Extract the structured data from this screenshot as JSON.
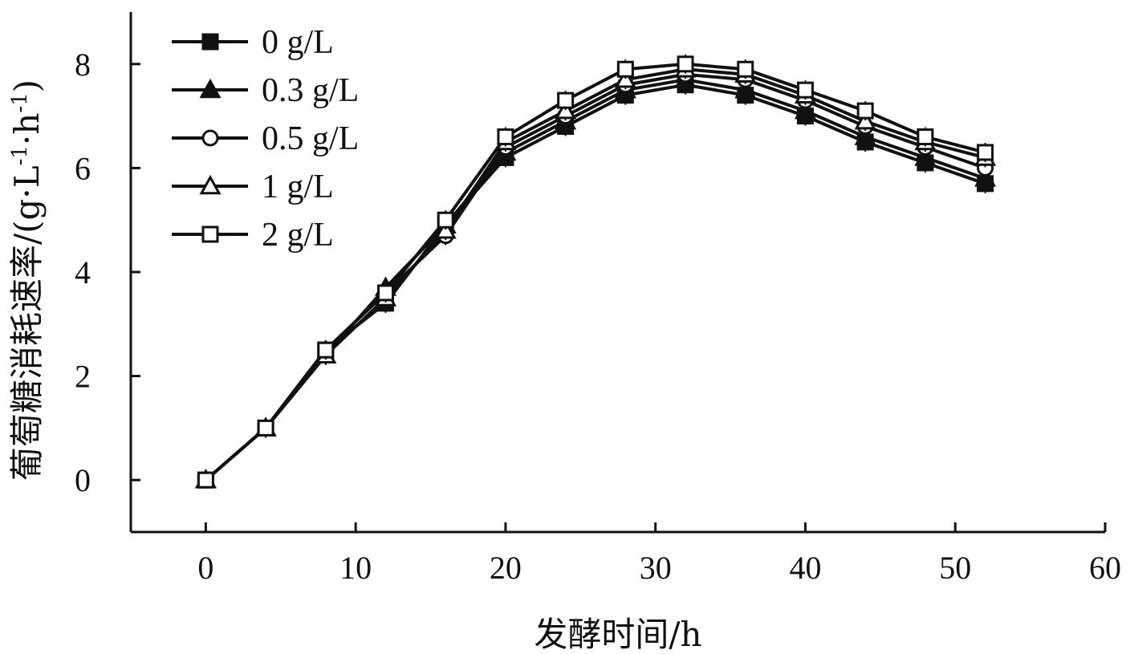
{
  "chart_data": {
    "type": "line",
    "x": [
      0,
      4,
      8,
      12,
      16,
      20,
      24,
      28,
      32,
      36,
      40,
      44,
      48,
      52
    ],
    "series": [
      {
        "name": "0 g/L",
        "marker": "square-filled",
        "values": [
          0,
          1.0,
          2.5,
          3.4,
          4.9,
          6.2,
          6.8,
          7.4,
          7.6,
          7.4,
          7.0,
          6.5,
          6.1,
          5.7
        ]
      },
      {
        "name": "0.3 g/L",
        "marker": "triangle-filled",
        "values": [
          0,
          1.0,
          2.4,
          3.7,
          4.9,
          6.3,
          6.9,
          7.5,
          7.7,
          7.5,
          7.1,
          6.6,
          6.2,
          5.8
        ]
      },
      {
        "name": "0.5 g/L",
        "marker": "circle-open",
        "values": [
          0,
          1.0,
          2.5,
          3.6,
          4.7,
          6.4,
          7.0,
          7.6,
          7.8,
          7.7,
          7.3,
          6.8,
          6.4,
          6.0
        ]
      },
      {
        "name": "1 g/L",
        "marker": "triangle-open",
        "values": [
          0,
          1.0,
          2.4,
          3.5,
          4.8,
          6.5,
          7.1,
          7.7,
          7.9,
          7.8,
          7.4,
          6.9,
          6.5,
          6.2
        ]
      },
      {
        "name": "2 g/L",
        "marker": "square-open",
        "values": [
          0,
          1.0,
          2.5,
          3.6,
          5.0,
          6.6,
          7.3,
          7.9,
          8.0,
          7.9,
          7.5,
          7.1,
          6.6,
          6.3
        ]
      }
    ],
    "xlabel": "发酵时间/h",
    "ylabel_main": "葡萄糖消耗速率/(g·L",
    "ylabel_sup1": "-1",
    "ylabel_mid": "·h",
    "ylabel_sup2": "-1",
    "ylabel_end": ")",
    "xlim": [
      -5,
      60
    ],
    "ylim": [
      -1,
      9
    ],
    "xticks": [
      0,
      10,
      20,
      30,
      40,
      50,
      60
    ],
    "yticks": [
      0,
      2,
      4,
      6,
      8
    ],
    "grid": false,
    "legend_position": "top-left",
    "line_color": "#111111"
  }
}
